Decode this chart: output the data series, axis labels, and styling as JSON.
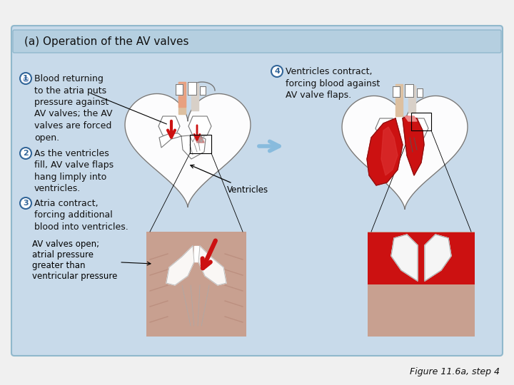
{
  "title": "(a) Operation of the AV valves",
  "title_fontsize": 11,
  "panel_bg": "#c8daea",
  "title_bg": "#b5cfe0",
  "outer_bg": "#f0f0f0",
  "fig_caption": "Figure 11.6a, step 4",
  "text1": "Blood returning\nto the atria puts\npressure against\nAV valves; the AV\nvalves are forced\nopen.",
  "text2": "As the ventricles\nfill, AV valve flaps\nhang limply into\nventricles.",
  "text3": "Atria contract,\nforcing additional\nblood into ventricles.",
  "text4": "Ventricles contract,\nforcing blood against\nAV valve flaps.",
  "label_ventricles": "Ventricles",
  "label_av": "AV valves open;\natrial pressure\ngreater than\nventricular pressure",
  "font_size": 9.0,
  "text_color": "#111111",
  "red": "#cc1111",
  "dark_red": "#881111",
  "mid_red": "#dd3333",
  "blue_arrow": "#88bbdd",
  "heart_line": "#777777",
  "skin_color": "#c8a090",
  "skin_dark": "#b08070"
}
